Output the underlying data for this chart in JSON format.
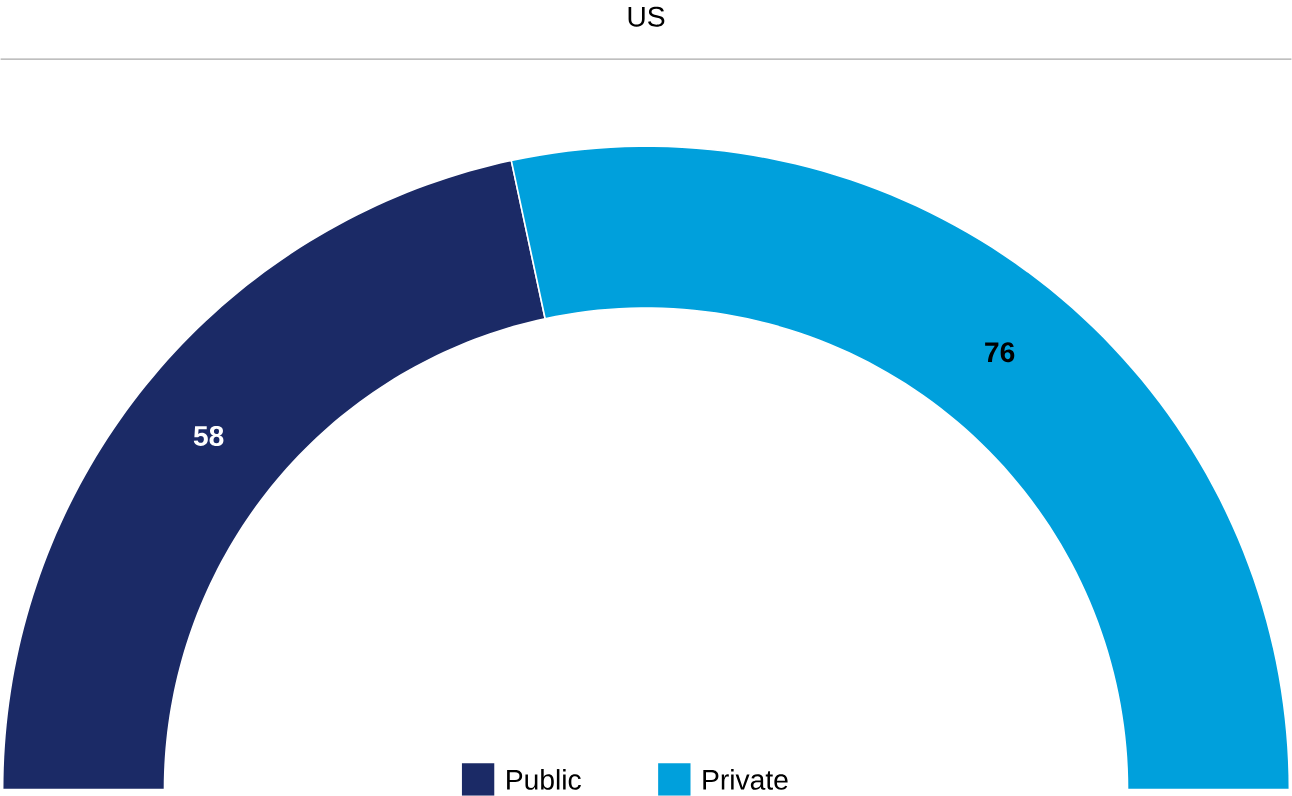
{
  "chart_data": {
    "type": "donut",
    "title": "US",
    "categories": [
      "Public",
      "Private"
    ],
    "values": [
      58,
      76
    ],
    "colors": [
      "#1b2a66",
      "#00a0dc"
    ],
    "data_labels": true,
    "legend": "bottom"
  }
}
